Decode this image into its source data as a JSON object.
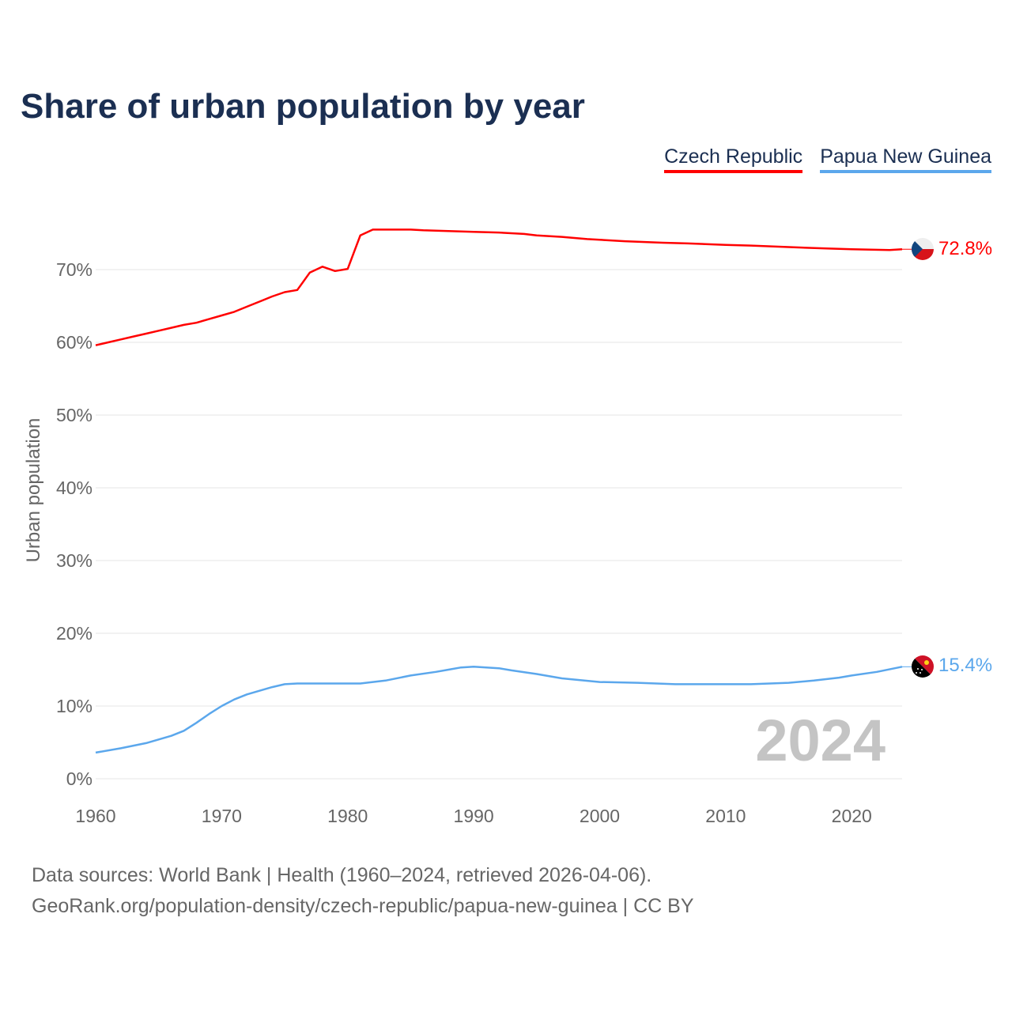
{
  "chart_data": {
    "type": "line",
    "title": "Share of urban population by year",
    "xlabel": "",
    "ylabel": "Urban population",
    "xlim": [
      1960,
      2024
    ],
    "ylim": [
      0,
      78
    ],
    "yticks": [
      0,
      10,
      20,
      30,
      40,
      50,
      60,
      70
    ],
    "ytick_labels": [
      "0%",
      "10%",
      "20%",
      "30%",
      "40%",
      "50%",
      "60%",
      "70%"
    ],
    "xticks": [
      1960,
      1970,
      1980,
      1990,
      2000,
      2010,
      2020
    ],
    "xtick_labels": [
      "1960",
      "1970",
      "1980",
      "1990",
      "2000",
      "2010",
      "2020"
    ],
    "grid": true,
    "legend_position": "top-right",
    "year_watermark": "2024",
    "series": [
      {
        "name": "Czech Republic",
        "color": "#ff0000",
        "end_label": "72.8%",
        "x": [
          1960,
          1961,
          1962,
          1963,
          1964,
          1965,
          1966,
          1967,
          1968,
          1969,
          1970,
          1971,
          1972,
          1973,
          1974,
          1975,
          1976,
          1977,
          1978,
          1979,
          1980,
          1981,
          1982,
          1985,
          1986,
          1988,
          1990,
          1992,
          1994,
          1995,
          1997,
          1999,
          2002,
          2005,
          2007,
          2010,
          2012,
          2015,
          2018,
          2020,
          2023,
          2024
        ],
        "y": [
          59.6,
          60.0,
          60.4,
          60.8,
          61.2,
          61.6,
          62.0,
          62.4,
          62.7,
          63.2,
          63.7,
          64.2,
          64.9,
          65.6,
          66.3,
          66.9,
          67.2,
          69.6,
          70.4,
          69.8,
          70.1,
          74.7,
          75.5,
          75.5,
          75.4,
          75.3,
          75.2,
          75.1,
          74.9,
          74.7,
          74.5,
          74.2,
          73.9,
          73.7,
          73.6,
          73.4,
          73.3,
          73.1,
          72.9,
          72.8,
          72.7,
          72.8
        ]
      },
      {
        "name": "Papua New Guinea",
        "color": "#5ba7ec",
        "end_label": "15.4%",
        "x": [
          1960,
          1962,
          1964,
          1966,
          1967,
          1968,
          1969,
          1970,
          1971,
          1972,
          1973,
          1974,
          1975,
          1976,
          1981,
          1983,
          1985,
          1987,
          1988,
          1989,
          1990,
          1992,
          1993,
          1995,
          1997,
          2000,
          2003,
          2006,
          2012,
          2015,
          2017,
          2019,
          2020,
          2022,
          2024
        ],
        "y": [
          3.6,
          4.2,
          4.9,
          5.9,
          6.6,
          7.7,
          8.9,
          10.0,
          10.9,
          11.6,
          12.1,
          12.6,
          13.0,
          13.1,
          13.1,
          13.5,
          14.2,
          14.7,
          15.0,
          15.3,
          15.4,
          15.2,
          14.9,
          14.4,
          13.8,
          13.3,
          13.2,
          13.0,
          13.0,
          13.2,
          13.5,
          13.9,
          14.2,
          14.7,
          15.4
        ]
      }
    ]
  },
  "footer": {
    "line1": "Data sources: World Bank | Health (1960–2024, retrieved 2026-04-06).",
    "line2": "GeoRank.org/population-density/czech-republic/papua-new-guinea | CC BY"
  }
}
